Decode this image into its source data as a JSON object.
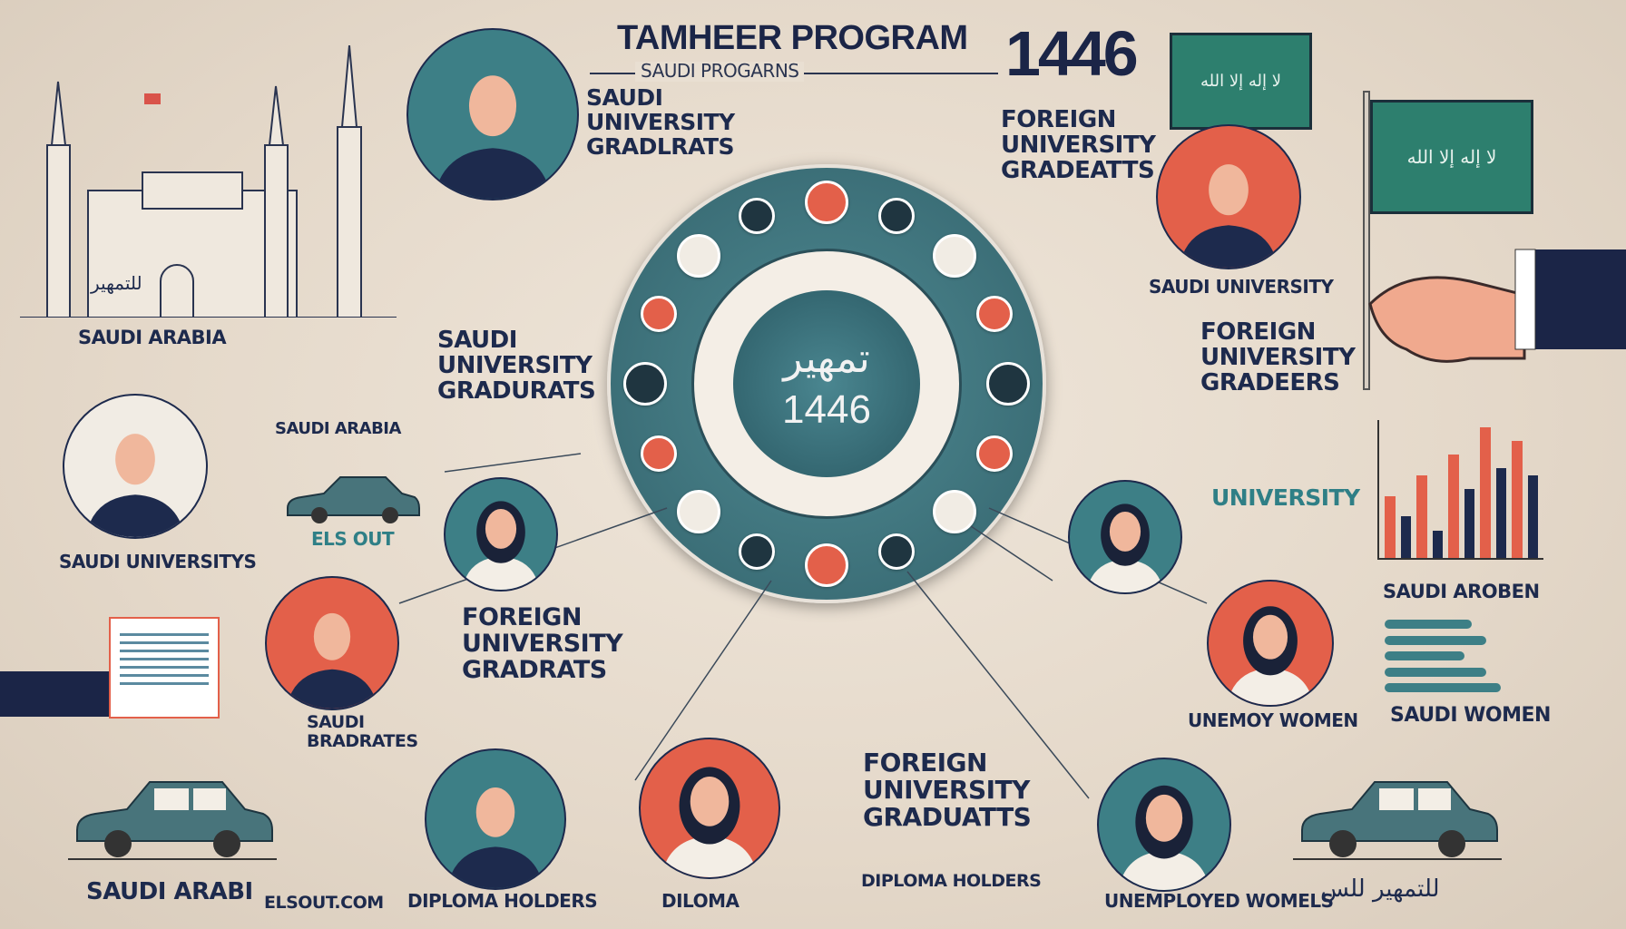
{
  "header": {
    "title": "TAMHEER PROGRAM",
    "year": "1446",
    "subtitle": "SAUDI PROGARNS"
  },
  "center": {
    "arabic": "تمهير",
    "year": "1446"
  },
  "flag_text": "لا إله إلا الله",
  "building_caption": "للتمهير",
  "car_caption": "للتمهير للس",
  "labels": [
    {
      "text": "SAUDI\nUNIVERSITY\nGRADLRATS"
    },
    {
      "text": "FOREIGN\nUNIVERSITY\nGRADEATTS"
    },
    {
      "text": "SAUDI UNIVERSITY"
    },
    {
      "text": "FOREIGN\nUNIVERSITY\nGRADEERS"
    },
    {
      "text": "SAUDI ARABIA"
    },
    {
      "text": "SAUDI ARABIA"
    },
    {
      "text": "SAUDI\nUNIVERSITY\nGRADURATS"
    },
    {
      "text": "UNIVERSITY"
    },
    {
      "text": "SAUDI UNIVERSITYS"
    },
    {
      "text": "ELS OUT"
    },
    {
      "text": "FOREIGN\nUNIVERSITY\nGRADRATS"
    },
    {
      "text": "SAUDI AROBEN"
    },
    {
      "text": "SAUDI\nBRADRATES"
    },
    {
      "text": "UNEMOY WOMEN"
    },
    {
      "text": "SAUDI WOMEN"
    },
    {
      "text": "FOREIGN\nUNIVERSITY\nGRADUATTS"
    },
    {
      "text": "DIPLOMA HOLDERS"
    },
    {
      "text": "SAUDI ARABI"
    },
    {
      "text": "ELSOUT.COM"
    },
    {
      "text": "DIPLOMA HOLDERS"
    },
    {
      "text": "DILOMA"
    },
    {
      "text": "UNEMPLOYED WOMELS"
    }
  ],
  "colors": {
    "background": "#e6dbcd",
    "teal": "#3d7f86",
    "dark": "#1d2a4d",
    "coral": "#e3604a",
    "ring": "#3c6f78"
  },
  "bar_chart_levels": [
    0.45,
    0.3,
    0.6,
    0.2,
    0.75,
    0.5,
    0.95,
    0.65,
    0.85,
    0.6
  ],
  "hbar_levels": [
    0.6,
    0.7,
    0.55,
    0.7,
    0.8
  ]
}
